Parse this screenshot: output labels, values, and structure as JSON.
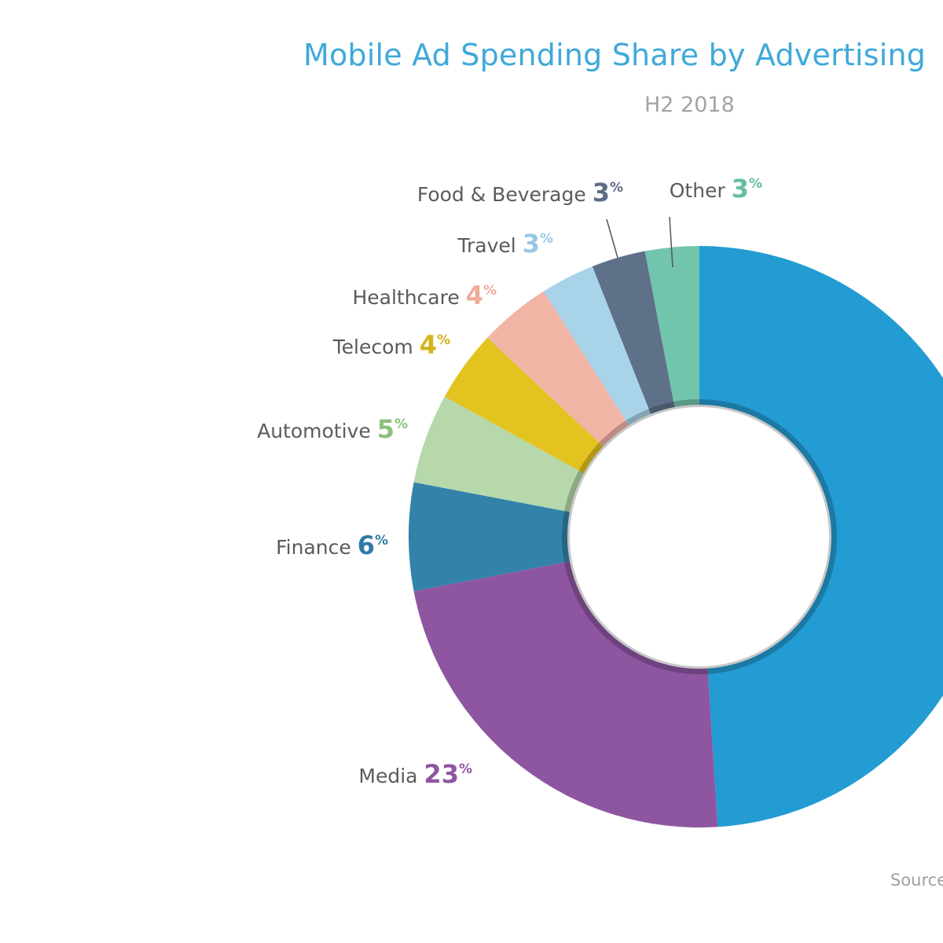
{
  "header": {
    "title": "Mobile Ad Spending Share by Advertising",
    "subtitle": "H2 2018"
  },
  "footer": {
    "source": "Source"
  },
  "chart_data": {
    "type": "pie",
    "variant": "donut",
    "title": "Mobile Ad Spending Share by Advertising",
    "subtitle": "H2 2018",
    "unit": "%",
    "slices": [
      {
        "name": "",
        "value": 49,
        "color": "#239bd3"
      },
      {
        "name": "Media",
        "value": 23,
        "color": "#8e55a1"
      },
      {
        "name": "Finance",
        "value": 6,
        "color": "#3382aa"
      },
      {
        "name": "Automotive",
        "value": 5,
        "color": "#b6d8aa"
      },
      {
        "name": "Telecom",
        "value": 4,
        "color": "#e3c31f"
      },
      {
        "name": "Healthcare",
        "value": 4,
        "color": "#f0b5a5"
      },
      {
        "name": "Travel",
        "value": 3,
        "color": "#a9d3e9"
      },
      {
        "name": "Food & Beverage",
        "value": 3,
        "color": "#5e7188"
      },
      {
        "name": "Other",
        "value": 3,
        "color": "#72c5ad"
      }
    ],
    "label_colors": {
      "Media": "#8e55a1",
      "Finance": "#2f7aa6",
      "Automotive": "#8cc07c",
      "Telecom": "#d6b21a",
      "Healthcare": "#efab98",
      "Travel": "#97c8e4",
      "Food & Beverage": "#5a6d84",
      "Other": "#63bfa3"
    }
  }
}
